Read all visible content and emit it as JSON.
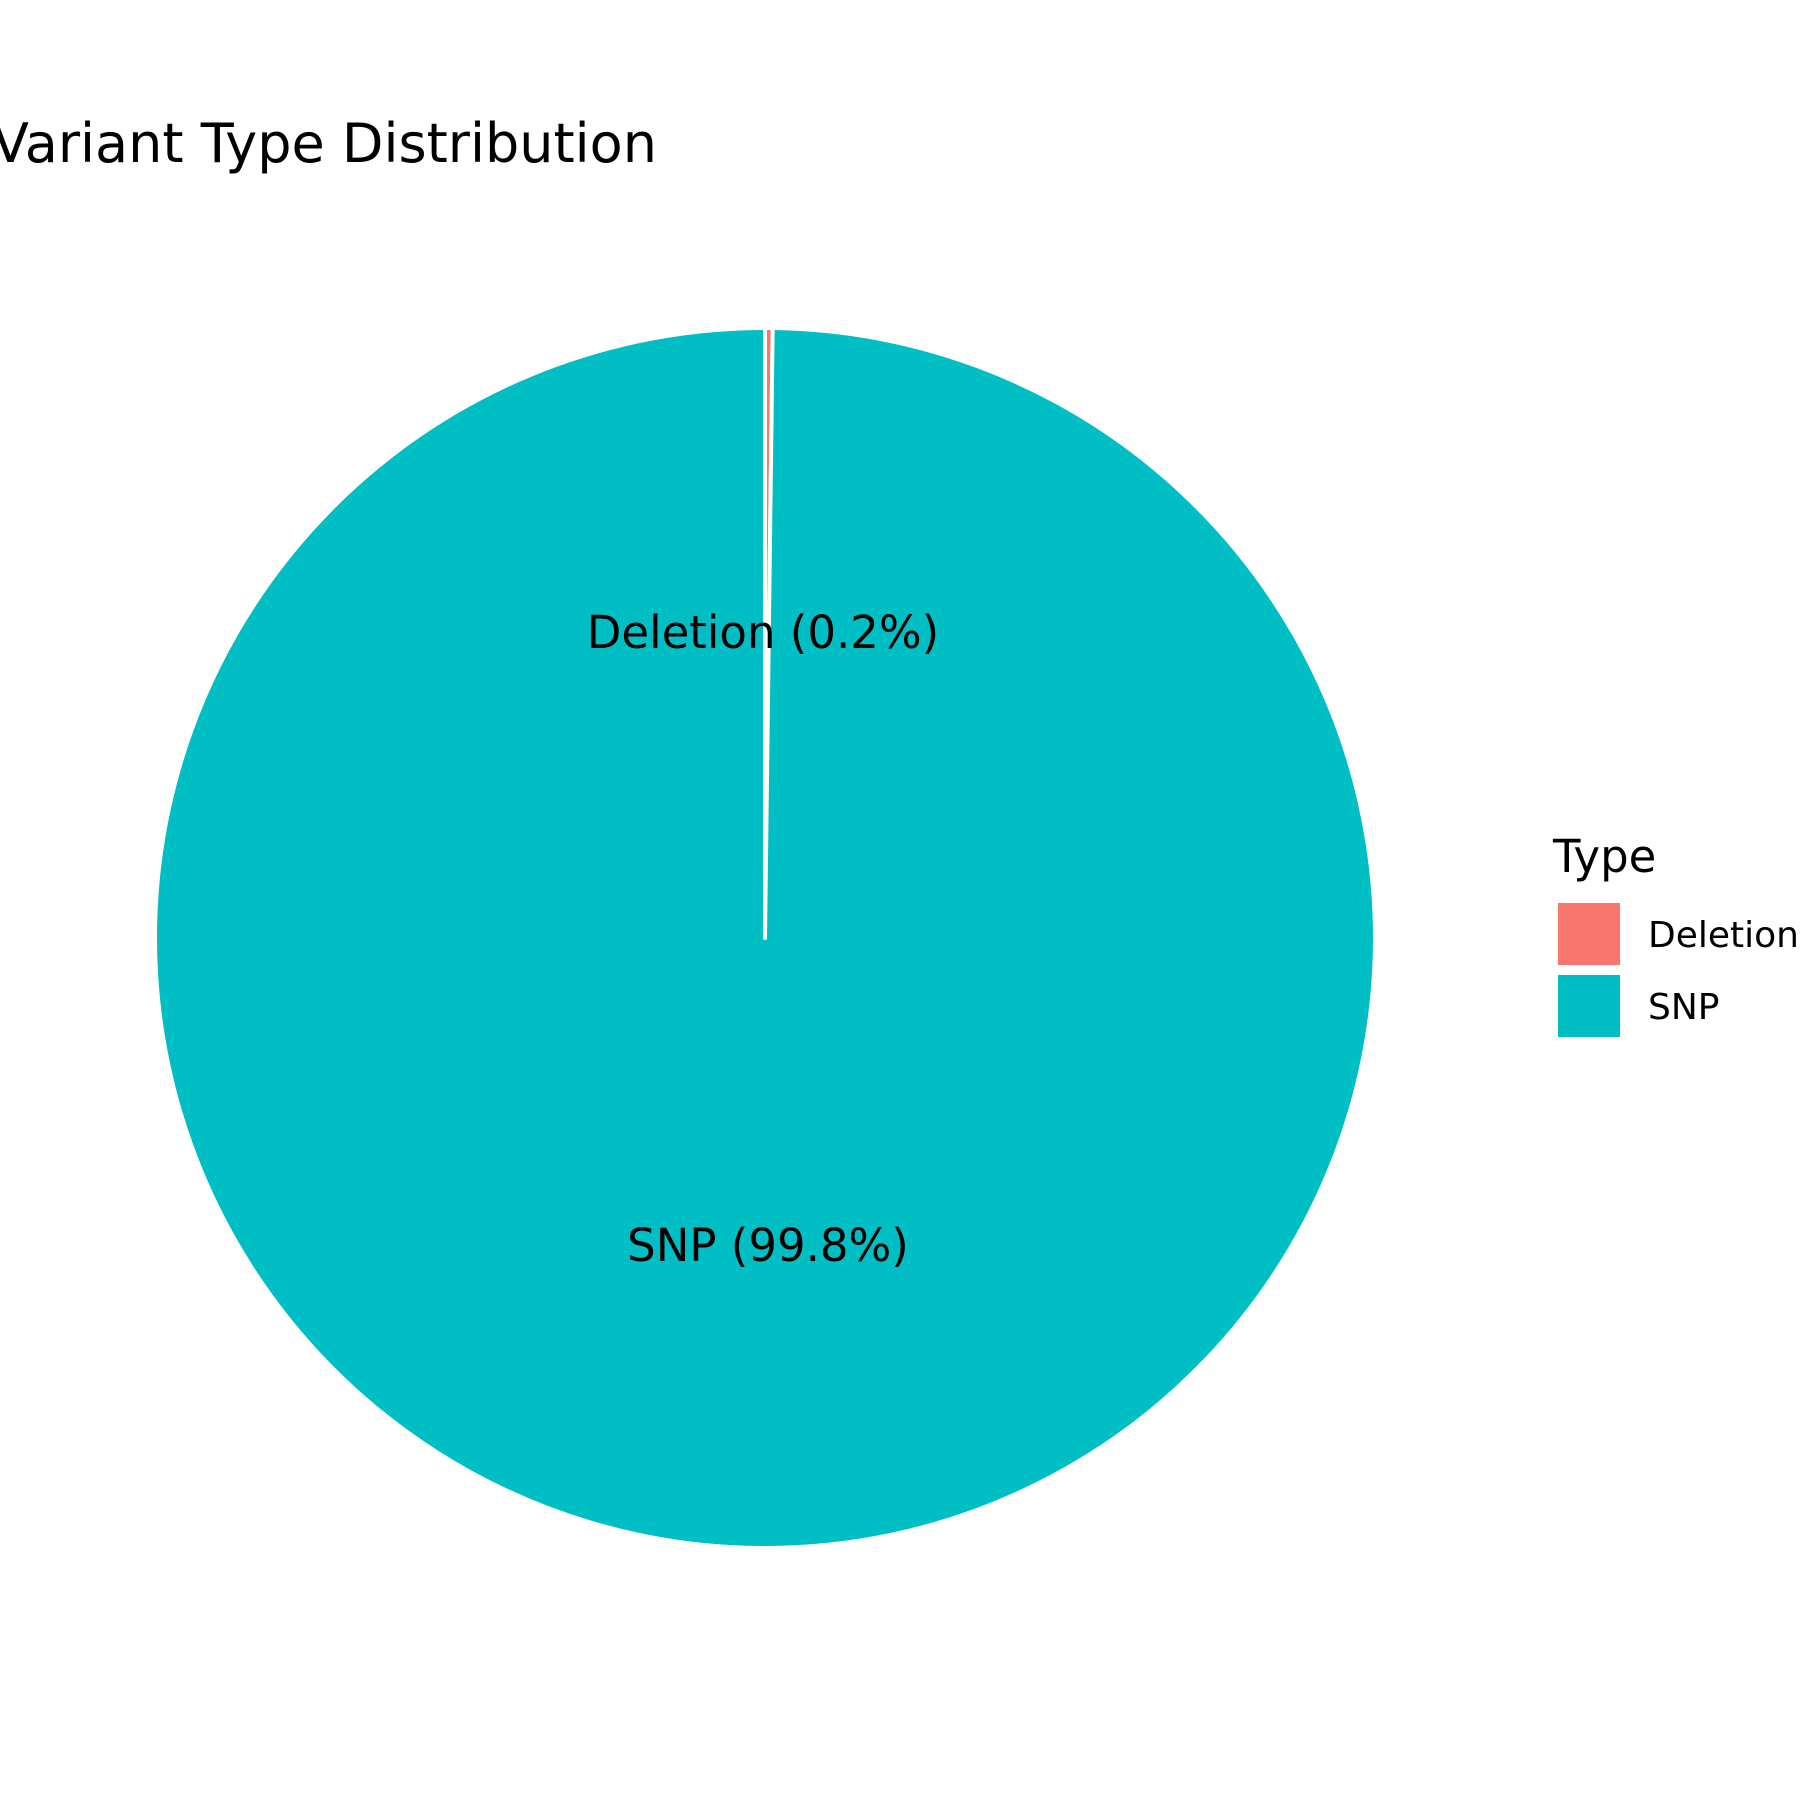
{
  "chart_data": {
    "type": "pie",
    "title": "Variant Type Distribution",
    "legend_title": "Type",
    "legend_position": "right",
    "slices": [
      {
        "name": "Deletion",
        "percent": 0.2,
        "label": "Deletion (0.2%)",
        "color": "#F8766D"
      },
      {
        "name": "SNP",
        "percent": 99.8,
        "label": "SNP (99.8%)",
        "color": "#00BFC4"
      }
    ]
  }
}
